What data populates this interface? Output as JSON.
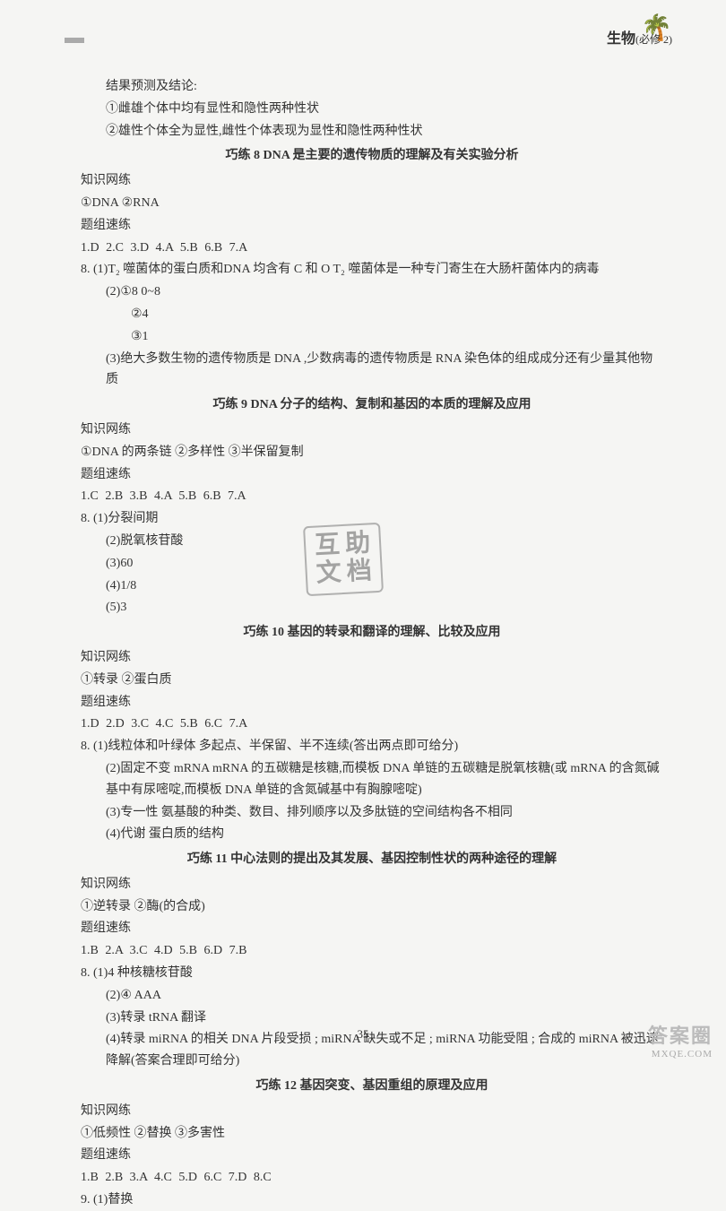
{
  "header": {
    "subject": "生物",
    "subscript": "(必修 2)"
  },
  "pageNumber": "35",
  "cornerWatermark": {
    "cn": "答案圈",
    "en": "MXQE.COM"
  },
  "stamp": {
    "tl": "互",
    "tr": "助",
    "bl": "文",
    "br": "档"
  },
  "body": {
    "intro1": "结果预测及结论:",
    "intro2": "①雌雄个体中均有显性和隐性两种性状",
    "intro3": "②雄性个体全为显性,雌性个体表现为显性和隐性两种性状",
    "s8_title": "巧练 8  DNA 是主要的遗传物质的理解及有关实验分析",
    "s8_zswl": "知识网练",
    "s8_zswl_1": "①DNA  ②RNA",
    "s8_tzsl": "题组速练",
    "s8_ans": "1.D  2.C  3.D  4.A  5.B  6.B  7.A",
    "s8_8_1": "8. (1)T₂ 噬菌体的蛋白质和DNA 均含有 C 和 O   T₂ 噬菌体是一种专门寄生在大肠杆菌体内的病毒",
    "s8_8_2a": "(2)①8   0~8",
    "s8_8_2b": "②4",
    "s8_8_2c": "③1",
    "s8_8_3": "(3)绝大多数生物的遗传物质是 DNA ,少数病毒的遗传物质是 RNA    染色体的组成成分还有少量其他物质",
    "s9_title": "巧练 9   DNA 分子的结构、复制和基因的本质的理解及应用",
    "s9_zswl": "知识网练",
    "s9_zswl_1": "①DNA 的两条链  ②多样性  ③半保留复制",
    "s9_tzsl": "题组速练",
    "s9_ans": "1.C  2.B  3.B  4.A  5.B  6.B  7.A",
    "s9_8_1": "8. (1)分裂间期",
    "s9_8_2": "(2)脱氧核苷酸",
    "s9_8_3": "(3)60",
    "s9_8_4": "(4)1/8",
    "s9_8_5": "(5)3",
    "s10_title": "巧练 10   基因的转录和翻译的理解、比较及应用",
    "s10_zswl": "知识网练",
    "s10_zswl_1": "①转录  ②蛋白质",
    "s10_tzsl": "题组速练",
    "s10_ans": "1.D  2.D  3.C  4.C  5.B  6.C  7.A",
    "s10_8_1": "8. (1)线粒体和叶绿体   多起点、半保留、半不连续(答出两点即可给分)",
    "s10_8_2": "(2)固定不变   mRNA   mRNA 的五碳糖是核糖,而模板 DNA 单链的五碳糖是脱氧核糖(或 mRNA 的含氮碱基中有尿嘧啶,而模板 DNA 单链的含氮碱基中有胸腺嘧啶)",
    "s10_8_3": "(3)专一性   氨基酸的种类、数目、排列顺序以及多肽链的空间结构各不相同",
    "s10_8_4": "(4)代谢   蛋白质的结构",
    "s11_title": "巧练 11   中心法则的提出及其发展、基因控制性状的两种途径的理解",
    "s11_zswl": "知识网练",
    "s11_zswl_1": "①逆转录  ②酶(的合成)",
    "s11_tzsl": "题组速练",
    "s11_ans": "1.B  2.A  3.C  4.D  5.B  6.D  7.B",
    "s11_8_1": "8. (1)4 种核糖核苷酸",
    "s11_8_2": "(2)④   AAA",
    "s11_8_3": "(3)转录   tRNA   翻译",
    "s11_8_4": "(4)转录 miRNA 的相关 DNA 片段受损 ; miRNA 缺失或不足 ; miRNA 功能受阻 ; 合成的 miRNA 被迅速降解(答案合理即可给分)",
    "s12_title": "巧练 12   基因突变、基因重组的原理及应用",
    "s12_zswl": "知识网练",
    "s12_zswl_1": "①低频性  ②替换  ③多害性",
    "s12_tzsl": "题组速练",
    "s12_ans": "1.B  2.B  3.A  4.C  5.D  6.C  7.D  8.C",
    "s12_9_1": "9. (1)替换"
  }
}
